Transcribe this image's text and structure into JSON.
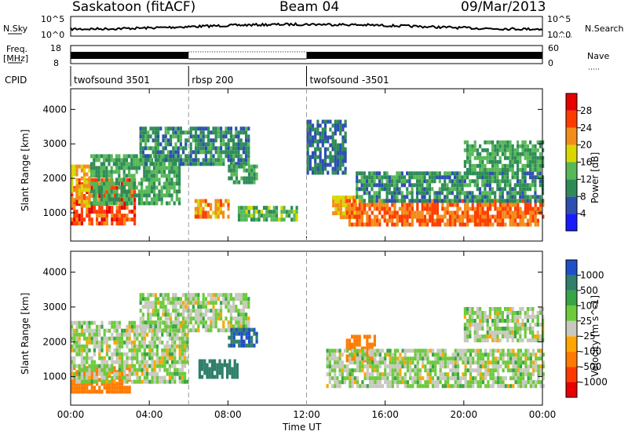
{
  "header": {
    "station": "Saskatoon (fitACF)",
    "beam": "Beam 04",
    "date": "09/Mar/2013"
  },
  "panels_labels": {
    "nsky": "N.Sky",
    "nsky_tick_top": "10^5",
    "nsky_tick_bottom": "10^0",
    "nsearch": "N.Search",
    "nsearch_tick_top": "10^5",
    "nsearch_tick_bottom": "10^0",
    "freq_line1": "Freq.",
    "freq_line2": "[MHz]",
    "freq_tick_top": "18",
    "freq_tick_bottom": "8",
    "nave": "Nave",
    "nave_tick_top": "60",
    "nave_tick_bottom": "0",
    "cpid": "CPID"
  },
  "cpid_segments": [
    {
      "label": "twofsound 3501",
      "start_h": 0,
      "end_h": 6
    },
    {
      "label": "rbsp 200",
      "start_h": 6,
      "end_h": 12
    },
    {
      "label": "twofsound -3501",
      "start_h": 12,
      "end_h": 24
    }
  ],
  "axes": {
    "time_ticks": [
      "00:00",
      "04:00",
      "08:00",
      "12:00",
      "16:00",
      "20:00",
      "00:00"
    ],
    "time_hours": [
      0,
      4,
      8,
      12,
      16,
      20,
      24
    ],
    "xlabel": "Time UT",
    "range_ticks": [
      "1000",
      "2000",
      "3000",
      "4000"
    ],
    "range_values": [
      1000,
      2000,
      3000,
      4000
    ],
    "ylabel_power": "Slant Range [km]",
    "ylabel_velocity": "Slant Range [km]",
    "ylim": [
      180,
      4600
    ]
  },
  "power_scale": {
    "label": "Power [dB]",
    "ticks": [
      "4",
      "8",
      "12",
      "16",
      "20",
      "24",
      "28"
    ],
    "colors": [
      "#1a1aff",
      "#2c4fb0",
      "#2e8b57",
      "#57b857",
      "#d8d800",
      "#f28c1a",
      "#ff3c00",
      "#e60000"
    ]
  },
  "velocity_scale": {
    "label": "Velocity [m s^-1]",
    "ticks": [
      "1000",
      "500",
      "100",
      "25",
      "-25",
      "-100",
      "-500",
      "-1000"
    ],
    "colors": [
      "#1f4fc8",
      "#2f7f6a",
      "#36a545",
      "#6ccb3a",
      "#c8c8c0",
      "#ffa500",
      "#ff7a00",
      "#ff3a00",
      "#e60000"
    ]
  },
  "chart_data": {
    "type": "heatmap",
    "title": "Saskatoon (fitACF)",
    "subtitle": "Beam 04",
    "xlabel": "Time UT",
    "x_range_hours": [
      0,
      24
    ],
    "ylim": [
      180,
      4600
    ],
    "panels": [
      {
        "name": "Power",
        "units": "dB",
        "ylabel": "Slant Range [km]",
        "regions": [
          {
            "t0": 0.0,
            "t1": 3.2,
            "r0": 700,
            "r1": 2000,
            "value": 26
          },
          {
            "t0": 0.0,
            "t1": 1.0,
            "r0": 1200,
            "r1": 2400,
            "value": 20
          },
          {
            "t0": 1.0,
            "t1": 5.5,
            "r0": 1300,
            "r1": 2700,
            "value": 12
          },
          {
            "t0": 3.5,
            "t1": 9.0,
            "r0": 2400,
            "r1": 3500,
            "value": 10
          },
          {
            "t0": 6.3,
            "t1": 8.0,
            "r0": 900,
            "r1": 1400,
            "value": 22
          },
          {
            "t0": 8.5,
            "t1": 11.5,
            "r0": 800,
            "r1": 1200,
            "value": 14
          },
          {
            "t0": 8.0,
            "t1": 9.5,
            "r0": 1900,
            "r1": 2400,
            "value": 12
          },
          {
            "t0": 12.0,
            "t1": 14.0,
            "r0": 2200,
            "r1": 3700,
            "value": 8
          },
          {
            "t0": 13.3,
            "t1": 14.5,
            "r0": 900,
            "r1": 1500,
            "value": 20
          },
          {
            "t0": 14.0,
            "t1": 24.0,
            "r0": 700,
            "r1": 1400,
            "value": 24
          },
          {
            "t0": 14.5,
            "t1": 24.0,
            "r0": 1400,
            "r1": 2200,
            "value": 10
          },
          {
            "t0": 20.0,
            "t1": 24.0,
            "r0": 2300,
            "r1": 3100,
            "value": 12
          }
        ]
      },
      {
        "name": "Velocity",
        "units": "m s^-1",
        "ylabel": "Slant Range [km]",
        "regions": [
          {
            "t0": 0.0,
            "t1": 3.0,
            "r0": 600,
            "r1": 1300,
            "value": -200
          },
          {
            "t0": 0.0,
            "t1": 6.0,
            "r0": 900,
            "r1": 2600,
            "value": 0
          },
          {
            "t0": 3.5,
            "t1": 9.0,
            "r0": 2300,
            "r1": 3400,
            "value": 0
          },
          {
            "t0": 6.5,
            "t1": 8.5,
            "r0": 1000,
            "r1": 1500,
            "value": 200
          },
          {
            "t0": 8.0,
            "t1": 9.5,
            "r0": 1900,
            "r1": 2400,
            "value": 500
          },
          {
            "t0": 14.0,
            "t1": 15.5,
            "r0": 1500,
            "r1": 2200,
            "value": -300
          },
          {
            "t0": 13.0,
            "t1": 24.0,
            "r0": 700,
            "r1": 1800,
            "value": 0
          },
          {
            "t0": 20.0,
            "t1": 24.0,
            "r0": 2000,
            "r1": 3000,
            "value": 0
          }
        ]
      }
    ]
  }
}
